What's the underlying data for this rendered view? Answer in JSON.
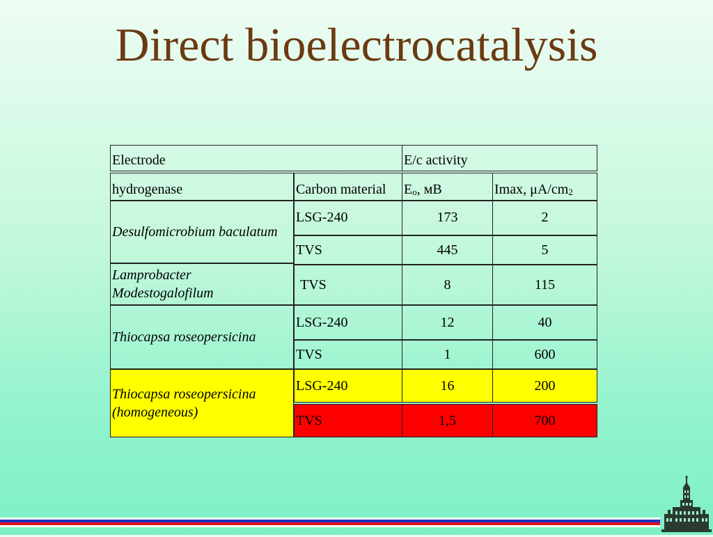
{
  "title": "Direct bioelectrocatalysis",
  "colors": {
    "title": "#6b3a10",
    "highlight_yellow": "#ffff00",
    "highlight_red": "#ff0000"
  },
  "table": {
    "header1": {
      "electrode": "Electrode",
      "activity": "E/c activity"
    },
    "header2": {
      "enzyme": "hydrogenase",
      "carbon": "Carbon material",
      "e0": "Eo, мВ",
      "e0_main": "E",
      "e0_sub": "o",
      "e0_rest": ", мВ",
      "imax": "Imax, μA/cm",
      "imax_sup": "2"
    },
    "groups": [
      {
        "name": "Desulfomicrobium baculatum",
        "rows": [
          {
            "carbon": "LSG-240",
            "e0": "173",
            "imax": "2"
          },
          {
            "carbon": "TVS",
            "e0": "445",
            "imax": "5"
          }
        ]
      },
      {
        "name": "Lamprobacter Modestogalofilum",
        "rows": [
          {
            "carbon": "TVS",
            "e0": "8",
            "imax": "115"
          }
        ]
      },
      {
        "name": "Thiocapsa roseopersicina",
        "rows": [
          {
            "carbon": "LSG-240",
            "e0": "12",
            "imax": "40"
          },
          {
            "carbon": "TVS",
            "e0": "1",
            "imax": "600"
          }
        ]
      },
      {
        "name": "Thiocapsa roseopersicina (homogeneous)",
        "rows": [
          {
            "carbon": "LSG-240",
            "e0": "16",
            "imax": "200"
          },
          {
            "carbon": "TVS",
            "e0": "1,5",
            "imax": "700"
          }
        ]
      }
    ]
  },
  "logo": {
    "icon": "university-building-icon"
  }
}
